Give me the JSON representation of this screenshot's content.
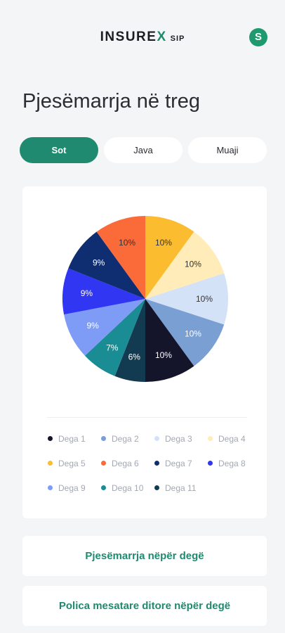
{
  "header": {
    "logo_main": "INSURE",
    "logo_x": "X",
    "logo_sub": "SIP",
    "avatar_letter": "S",
    "accent_color": "#1f8a6f"
  },
  "page": {
    "title": "Pjesëmarrja në treg"
  },
  "tabs": [
    {
      "label": "Sot",
      "active": true
    },
    {
      "label": "Java",
      "active": false
    },
    {
      "label": "Muaji",
      "active": false
    }
  ],
  "chart_data": {
    "type": "pie",
    "title": "",
    "slices": [
      {
        "name": "Dega 5",
        "value": 10,
        "label": "10%",
        "color": "#fbbd2f"
      },
      {
        "name": "Dega 4",
        "value": 10,
        "label": "10%",
        "color": "#ffecb8"
      },
      {
        "name": "Dega 3",
        "value": 10,
        "label": "10%",
        "color": "#d4e2f7"
      },
      {
        "name": "Dega 2",
        "value": 10,
        "label": "10%",
        "color": "#7a9fd3"
      },
      {
        "name": "Dega 1",
        "value": 10,
        "label": "10%",
        "color": "#14142b"
      },
      {
        "name": "Dega 11",
        "value": 6,
        "label": "6%",
        "color": "#123a50"
      },
      {
        "name": "Dega 10",
        "value": 7,
        "label": "7%",
        "color": "#1a8c93"
      },
      {
        "name": "Dega 9",
        "value": 9,
        "label": "9%",
        "color": "#7e9cf5"
      },
      {
        "name": "Dega 8",
        "value": 9,
        "label": "9%",
        "color": "#3136f2"
      },
      {
        "name": "Dega 7",
        "value": 9,
        "label": "9%",
        "color": "#0f2e72"
      },
      {
        "name": "Dega 6",
        "value": 10,
        "label": "10%",
        "color": "#fb6a39"
      }
    ],
    "legend_position": "bottom"
  },
  "legend": [
    {
      "name": "Dega 1",
      "color": "#14142b"
    },
    {
      "name": "Dega 2",
      "color": "#7a9fd3"
    },
    {
      "name": "Dega 3",
      "color": "#d4e2f7"
    },
    {
      "name": "Dega 4",
      "color": "#ffecb8"
    },
    {
      "name": "Dega 5",
      "color": "#fbbd2f"
    },
    {
      "name": "Dega 6",
      "color": "#fb6a39"
    },
    {
      "name": "Dega 7",
      "color": "#0f2e72"
    },
    {
      "name": "Dega 8",
      "color": "#3136f2"
    },
    {
      "name": "Dega 9",
      "color": "#7e9cf5"
    },
    {
      "name": "Dega 10",
      "color": "#1a8c93"
    },
    {
      "name": "Dega 11",
      "color": "#123a50"
    }
  ],
  "links": [
    {
      "label": "Pjesëmarrja nëpër degë"
    },
    {
      "label": "Polica mesatare ditore nëpër degë"
    }
  ]
}
